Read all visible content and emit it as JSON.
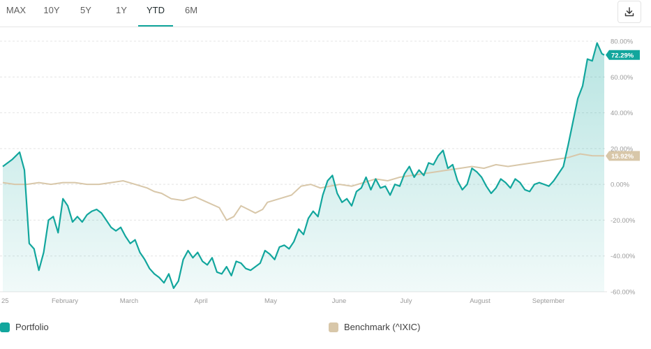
{
  "tabs": [
    {
      "label": "MAX",
      "active": false
    },
    {
      "label": "10Y",
      "active": false
    },
    {
      "label": "5Y",
      "active": false
    },
    {
      "label": "1Y",
      "active": false
    },
    {
      "label": "YTD",
      "active": true
    },
    {
      "label": "6M",
      "active": false
    }
  ],
  "download_icon": "download-icon",
  "legend": [
    {
      "label": "Portfolio",
      "color": "#12a69d"
    },
    {
      "label": "Benchmark (^IXIC)",
      "color": "#d8c7a9"
    }
  ],
  "chart_data": {
    "type": "line",
    "title": "",
    "xlabel": "",
    "ylabel": "",
    "x_ticks": [
      "25",
      "February",
      "March",
      "April",
      "May",
      "June",
      "July",
      "August",
      "September"
    ],
    "y_ticks": [
      "80.00%",
      "60.00%",
      "40.00%",
      "20.00%",
      "0.00%",
      "-20.00%",
      "-40.00%",
      "-60.00%"
    ],
    "ylim": [
      -60,
      80
    ],
    "grid": true,
    "end_labels": {
      "portfolio": "72.29%",
      "benchmark": "15.92%"
    },
    "series": [
      {
        "name": "Portfolio",
        "color": "#12a69d",
        "fill": true,
        "points": [
          [
            0,
            10
          ],
          [
            0.4,
            14
          ],
          [
            0.7,
            18
          ],
          [
            0.9,
            8
          ],
          [
            1.1,
            -33
          ],
          [
            1.3,
            -36
          ],
          [
            1.5,
            -48
          ],
          [
            1.7,
            -38
          ],
          [
            1.9,
            -20
          ],
          [
            2.1,
            -18
          ],
          [
            2.3,
            -27
          ],
          [
            2.5,
            -8
          ],
          [
            2.7,
            -12
          ],
          [
            2.9,
            -21
          ],
          [
            3.1,
            -18
          ],
          [
            3.3,
            -21
          ],
          [
            3.5,
            -17
          ],
          [
            3.7,
            -15
          ],
          [
            3.9,
            -14
          ],
          [
            4.1,
            -16
          ],
          [
            4.3,
            -20
          ],
          [
            4.5,
            -24
          ],
          [
            4.7,
            -26
          ],
          [
            4.9,
            -24
          ],
          [
            5.1,
            -29
          ],
          [
            5.3,
            -33
          ],
          [
            5.5,
            -31
          ],
          [
            5.7,
            -38
          ],
          [
            5.9,
            -42
          ],
          [
            6.1,
            -47
          ],
          [
            6.3,
            -50
          ],
          [
            6.5,
            -52
          ],
          [
            6.7,
            -55
          ],
          [
            6.9,
            -50
          ],
          [
            7.1,
            -58
          ],
          [
            7.3,
            -54
          ],
          [
            7.5,
            -42
          ],
          [
            7.7,
            -37
          ],
          [
            7.9,
            -41
          ],
          [
            8.1,
            -38
          ],
          [
            8.3,
            -43
          ],
          [
            8.5,
            -45
          ],
          [
            8.7,
            -41
          ],
          [
            8.9,
            -49
          ],
          [
            9.1,
            -50
          ],
          [
            9.3,
            -46
          ],
          [
            9.5,
            -51
          ],
          [
            9.7,
            -43
          ],
          [
            9.9,
            -44
          ],
          [
            10.1,
            -47
          ],
          [
            10.3,
            -48
          ],
          [
            10.5,
            -46
          ],
          [
            10.7,
            -44
          ],
          [
            10.9,
            -37
          ],
          [
            11.1,
            -39
          ],
          [
            11.3,
            -42
          ],
          [
            11.5,
            -35
          ],
          [
            11.7,
            -34
          ],
          [
            11.9,
            -36
          ],
          [
            12.1,
            -32
          ],
          [
            12.3,
            -25
          ],
          [
            12.5,
            -28
          ],
          [
            12.7,
            -19
          ],
          [
            12.9,
            -15
          ],
          [
            13.1,
            -18
          ],
          [
            13.3,
            -6
          ],
          [
            13.5,
            2
          ],
          [
            13.7,
            5
          ],
          [
            13.9,
            -5
          ],
          [
            14.1,
            -10
          ],
          [
            14.3,
            -8
          ],
          [
            14.5,
            -12
          ],
          [
            14.7,
            -4
          ],
          [
            14.9,
            -2
          ],
          [
            15.1,
            4
          ],
          [
            15.3,
            -3
          ],
          [
            15.5,
            3
          ],
          [
            15.7,
            -2
          ],
          [
            15.9,
            -1
          ],
          [
            16.1,
            -6
          ],
          [
            16.3,
            0
          ],
          [
            16.5,
            -1
          ],
          [
            16.7,
            6
          ],
          [
            16.9,
            10
          ],
          [
            17.1,
            4
          ],
          [
            17.3,
            8
          ],
          [
            17.5,
            5
          ],
          [
            17.7,
            12
          ],
          [
            17.9,
            11
          ],
          [
            18.1,
            16
          ],
          [
            18.3,
            19
          ],
          [
            18.5,
            9
          ],
          [
            18.7,
            11
          ],
          [
            18.9,
            2
          ],
          [
            19.1,
            -3
          ],
          [
            19.3,
            0
          ],
          [
            19.5,
            9
          ],
          [
            19.7,
            7
          ],
          [
            19.9,
            4
          ],
          [
            20.1,
            -1
          ],
          [
            20.3,
            -5
          ],
          [
            20.5,
            -2
          ],
          [
            20.7,
            3
          ],
          [
            20.9,
            1
          ],
          [
            21.1,
            -2
          ],
          [
            21.3,
            3
          ],
          [
            21.5,
            1
          ],
          [
            21.7,
            -3
          ],
          [
            21.9,
            -4
          ],
          [
            22.1,
            0
          ],
          [
            22.3,
            1
          ],
          [
            22.5,
            0
          ],
          [
            22.7,
            -1
          ],
          [
            22.9,
            2
          ],
          [
            23.1,
            6
          ],
          [
            23.3,
            10
          ],
          [
            23.5,
            22
          ],
          [
            23.7,
            35
          ],
          [
            23.9,
            48
          ],
          [
            24.1,
            55
          ],
          [
            24.3,
            70
          ],
          [
            24.5,
            69
          ],
          [
            24.7,
            79
          ],
          [
            24.9,
            73
          ],
          [
            25,
            72.29
          ]
        ]
      },
      {
        "name": "Benchmark (^IXIC)",
        "color": "#d8c7a9",
        "fill": false,
        "points": [
          [
            0,
            1
          ],
          [
            0.5,
            0
          ],
          [
            1,
            0
          ],
          [
            1.5,
            1
          ],
          [
            2,
            0
          ],
          [
            2.5,
            1
          ],
          [
            3,
            1
          ],
          [
            3.5,
            0
          ],
          [
            4,
            0
          ],
          [
            4.5,
            1
          ],
          [
            5,
            2
          ],
          [
            5.5,
            0
          ],
          [
            6,
            -2
          ],
          [
            6.3,
            -4
          ],
          [
            6.6,
            -5
          ],
          [
            7,
            -8
          ],
          [
            7.5,
            -9
          ],
          [
            8,
            -7
          ],
          [
            8.5,
            -10
          ],
          [
            9,
            -13
          ],
          [
            9.3,
            -20
          ],
          [
            9.6,
            -18
          ],
          [
            9.9,
            -12
          ],
          [
            10.2,
            -14
          ],
          [
            10.5,
            -16
          ],
          [
            10.8,
            -14
          ],
          [
            11,
            -10
          ],
          [
            11.5,
            -8
          ],
          [
            12,
            -6
          ],
          [
            12.4,
            -1
          ],
          [
            12.8,
            0
          ],
          [
            13.2,
            -2
          ],
          [
            13.6,
            -1
          ],
          [
            14,
            0
          ],
          [
            14.5,
            -1
          ],
          [
            15,
            1
          ],
          [
            15.5,
            3
          ],
          [
            16,
            2
          ],
          [
            16.5,
            4
          ],
          [
            17,
            5
          ],
          [
            17.5,
            6
          ],
          [
            18,
            7
          ],
          [
            18.5,
            8
          ],
          [
            19,
            9
          ],
          [
            19.5,
            10
          ],
          [
            20,
            9
          ],
          [
            20.5,
            11
          ],
          [
            21,
            10
          ],
          [
            21.5,
            11
          ],
          [
            22,
            12
          ],
          [
            22.5,
            13
          ],
          [
            23,
            14
          ],
          [
            23.5,
            15
          ],
          [
            24,
            17
          ],
          [
            24.5,
            16
          ],
          [
            25,
            15.92
          ]
        ]
      }
    ]
  }
}
